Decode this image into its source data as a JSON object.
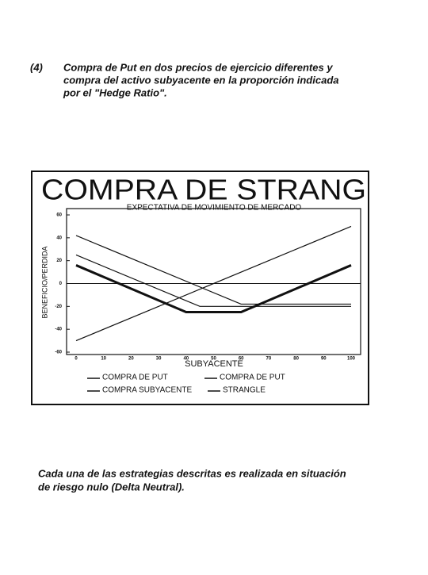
{
  "heading": {
    "number": "(4)",
    "lines": [
      "Compra de Put en dos precios de ejercicio diferentes y",
      "compra del activo subyacente en la proporción indicada",
      "por el \"Hedge Ratio\"."
    ]
  },
  "chart_data": {
    "type": "line",
    "title": "COMPRA DE STRANG",
    "subtitle": "EXPECTATIVA DE MOVIMIENTO DE MERCADO",
    "x_label": "SUBYACENTE",
    "y_label": "BENEFICIO/PERDIDA",
    "xlim": [
      0,
      100
    ],
    "xticks": [
      0,
      10,
      20,
      30,
      40,
      50,
      60,
      70,
      80,
      90,
      100
    ],
    "ylim": [
      -60,
      60
    ],
    "yticks": [
      60,
      40,
      20,
      0,
      -20,
      -40,
      -60
    ],
    "hlines": [
      0
    ],
    "series": [
      {
        "name": "COMPRA DE PUT",
        "color": "#111111",
        "x": [
          0,
          60,
          100
        ],
        "values": [
          42,
          -18,
          -18
        ]
      },
      {
        "name": "COMPRA DE PUT",
        "color": "#111111",
        "x": [
          0,
          45,
          100
        ],
        "values": [
          25,
          -20,
          -20
        ]
      },
      {
        "name": "COMPRA SUBYACENTE",
        "color": "#111111",
        "x": [
          0,
          100
        ],
        "values": [
          -50,
          50
        ]
      },
      {
        "name": "STRANGLE",
        "color": "#111111",
        "x": [
          0,
          40,
          60,
          100
        ],
        "values": [
          16,
          -25,
          -25,
          16
        ],
        "bold": true
      }
    ]
  },
  "note": {
    "lines": [
      "Cada una de las estrategias descritas es realizada en situación",
      "de riesgo nulo (Delta Neutral)."
    ]
  }
}
